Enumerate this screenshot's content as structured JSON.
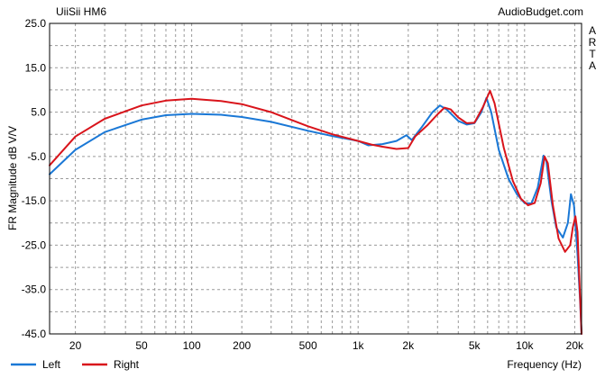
{
  "chart_data": {
    "type": "line",
    "title": "UiiSii HM6",
    "watermark": "AudioBudget.com",
    "side_label": [
      "A",
      "R",
      "T",
      "A"
    ],
    "xlabel": "Frequency (Hz)",
    "ylabel": "FR Magnitude dB V/V",
    "x_scale": "log",
    "xlim": [
      14,
      22000
    ],
    "ylim": [
      -45,
      25
    ],
    "grid": true,
    "legend_position": "bottom-left",
    "x_ticks": [
      {
        "value": 20,
        "label": "20"
      },
      {
        "value": 50,
        "label": "50"
      },
      {
        "value": 100,
        "label": "100"
      },
      {
        "value": 200,
        "label": "200"
      },
      {
        "value": 500,
        "label": "500"
      },
      {
        "value": 1000,
        "label": "1k"
      },
      {
        "value": 2000,
        "label": "2k"
      },
      {
        "value": 5000,
        "label": "5k"
      },
      {
        "value": 10000,
        "label": "10k"
      },
      {
        "value": 20000,
        "label": "20k"
      }
    ],
    "y_ticks": [
      {
        "value": 25,
        "label": "25.0"
      },
      {
        "value": 15,
        "label": "15.0"
      },
      {
        "value": 5,
        "label": "5.0"
      },
      {
        "value": -5,
        "label": "-5.0"
      },
      {
        "value": -15,
        "label": "-15.0"
      },
      {
        "value": -25,
        "label": "-25.0"
      },
      {
        "value": -35,
        "label": "-35.0"
      },
      {
        "value": -45,
        "label": "-45.0"
      }
    ],
    "series": [
      {
        "name": "Left",
        "color": "#1a78d6",
        "points": [
          [
            14,
            -9
          ],
          [
            20,
            -3.5
          ],
          [
            30,
            0.5
          ],
          [
            50,
            3.3
          ],
          [
            70,
            4.3
          ],
          [
            100,
            4.6
          ],
          [
            150,
            4.4
          ],
          [
            200,
            3.9
          ],
          [
            300,
            2.8
          ],
          [
            500,
            0.8
          ],
          [
            700,
            -0.4
          ],
          [
            1000,
            -1.5
          ],
          [
            1150,
            -2.5
          ],
          [
            1400,
            -2.2
          ],
          [
            1700,
            -1.5
          ],
          [
            1950,
            -0.2
          ],
          [
            2100,
            -1.3
          ],
          [
            2400,
            1.5
          ],
          [
            2800,
            5
          ],
          [
            3100,
            6.5
          ],
          [
            3400,
            5.6
          ],
          [
            4000,
            3
          ],
          [
            4500,
            2.2
          ],
          [
            5000,
            2.5
          ],
          [
            5500,
            5
          ],
          [
            5900,
            8.2
          ],
          [
            6300,
            5
          ],
          [
            7000,
            -3.5
          ],
          [
            8000,
            -10
          ],
          [
            9000,
            -13.5
          ],
          [
            10000,
            -15.5
          ],
          [
            11000,
            -15.6
          ],
          [
            12000,
            -12
          ],
          [
            13000,
            -4.8
          ],
          [
            13500,
            -6
          ],
          [
            14500,
            -15
          ],
          [
            15500,
            -21
          ],
          [
            17000,
            -23.3
          ],
          [
            18200,
            -20
          ],
          [
            19000,
            -13.5
          ],
          [
            19800,
            -16
          ],
          [
            20800,
            -27
          ],
          [
            21500,
            -37
          ],
          [
            22000,
            -45
          ]
        ]
      },
      {
        "name": "Right",
        "color": "#d9141b",
        "points": [
          [
            14,
            -7
          ],
          [
            20,
            -0.5
          ],
          [
            30,
            3.5
          ],
          [
            50,
            6.5
          ],
          [
            70,
            7.6
          ],
          [
            100,
            8
          ],
          [
            150,
            7.5
          ],
          [
            200,
            6.8
          ],
          [
            300,
            5
          ],
          [
            500,
            1.8
          ],
          [
            700,
            0
          ],
          [
            1000,
            -1.5
          ],
          [
            1200,
            -2.3
          ],
          [
            1400,
            -2.8
          ],
          [
            1700,
            -3.3
          ],
          [
            2000,
            -3.1
          ],
          [
            2200,
            -0.5
          ],
          [
            2600,
            2
          ],
          [
            3000,
            4.5
          ],
          [
            3300,
            6
          ],
          [
            3600,
            5.6
          ],
          [
            4000,
            3.8
          ],
          [
            4500,
            2.5
          ],
          [
            5000,
            2.6
          ],
          [
            5600,
            6
          ],
          [
            6200,
            9.8
          ],
          [
            6600,
            7
          ],
          [
            7500,
            -3
          ],
          [
            8500,
            -10.5
          ],
          [
            9500,
            -14.5
          ],
          [
            10500,
            -16
          ],
          [
            11500,
            -15.5
          ],
          [
            12500,
            -11
          ],
          [
            13200,
            -5
          ],
          [
            13800,
            -6.5
          ],
          [
            14800,
            -16
          ],
          [
            16000,
            -23.5
          ],
          [
            17500,
            -26.5
          ],
          [
            18800,
            -25
          ],
          [
            19500,
            -21
          ],
          [
            20200,
            -18.5
          ],
          [
            20800,
            -22
          ],
          [
            21500,
            -36
          ],
          [
            22000,
            -45
          ]
        ]
      }
    ]
  }
}
